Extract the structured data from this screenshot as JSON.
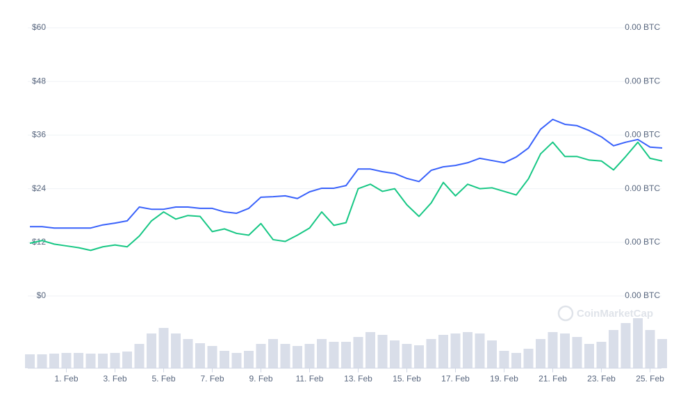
{
  "chart_data": [
    {
      "type": "line",
      "categories": [
        null,
        null,
        null,
        "1. Feb",
        null,
        null,
        null,
        "3. Feb",
        null,
        null,
        null,
        "5. Feb",
        null,
        null,
        null,
        "7. Feb",
        null,
        null,
        null,
        "9. Feb",
        null,
        null,
        null,
        "11. Feb",
        null,
        null,
        null,
        "13. Feb",
        null,
        null,
        null,
        "15. Feb",
        null,
        null,
        null,
        "17. Feb",
        null,
        null,
        null,
        "19. Feb",
        null,
        null,
        null,
        "21. Feb",
        null,
        null,
        null,
        "23. Feb",
        null,
        null,
        null,
        "25. Feb",
        null
      ],
      "series": [
        {
          "color": "#3861fb",
          "values": [
            15.5,
            15.5,
            15.2,
            15.2,
            15.2,
            15.2,
            15.9,
            16.3,
            16.8,
            19.9,
            19.4,
            19.4,
            19.9,
            19.9,
            19.6,
            19.6,
            18.8,
            18.5,
            19.6,
            22.1,
            22.2,
            22.4,
            21.8,
            23.3,
            24.1,
            24.1,
            24.7,
            28.4,
            28.4,
            27.8,
            27.4,
            26.3,
            25.6,
            28.1,
            28.9,
            29.2,
            29.8,
            30.8,
            30.3,
            29.8,
            31.1,
            33.1,
            37.3,
            39.5,
            38.4,
            38.1,
            37.0,
            35.6,
            33.6,
            34.4,
            35.0,
            33.3,
            33.1
          ]
        },
        {
          "color": "#16c784",
          "axis": "y2",
          "values": [
            0.00059,
            0.00062,
            0.00058,
            0.00056,
            0.00054,
            0.00051,
            0.00055,
            0.00057,
            0.00055,
            0.00067,
            0.00084,
            0.00094,
            0.00086,
            0.0009,
            0.00089,
            0.00072,
            0.00075,
            0.0007,
            0.00068,
            0.00081,
            0.00063,
            0.00061,
            0.00068,
            0.00076,
            0.00094,
            0.00079,
            0.00082,
            0.0012,
            0.00125,
            0.00117,
            0.0012,
            0.00102,
            0.00089,
            0.00104,
            0.00127,
            0.00112,
            0.00125,
            0.0012,
            0.00121,
            0.00117,
            0.00113,
            0.00131,
            0.00159,
            0.00172,
            0.00156,
            0.00156,
            0.00152,
            0.00151,
            0.00141,
            0.00156,
            0.00172,
            0.00154,
            0.00151
          ]
        }
      ],
      "ylim": [
        0,
        60
      ],
      "yticks": [
        {
          "value": 0,
          "label": "$0"
        },
        {
          "value": 12,
          "label": "$12"
        },
        {
          "value": 24,
          "label": "$24"
        },
        {
          "value": 36,
          "label": "$36"
        },
        {
          "value": 48,
          "label": "$48"
        },
        {
          "value": 60,
          "label": "$60"
        }
      ],
      "y2lim": [
        0,
        0.003
      ],
      "y2ticks": [
        {
          "value": 0,
          "label": "0.00 BTC"
        },
        {
          "value": 0.0006,
          "label": "0.00 BTC"
        },
        {
          "value": 0.0012,
          "label": "0.00 BTC"
        },
        {
          "value": 0.0018,
          "label": "0.00 BTC"
        },
        {
          "value": 0.0024,
          "label": "0.00 BTC"
        },
        {
          "value": 0.003,
          "label": "0.00 BTC"
        }
      ],
      "grid": true,
      "watermark": "CoinMarketCap"
    },
    {
      "type": "bar",
      "color": "#cfd6e4",
      "values": [
        20,
        20,
        21,
        22,
        22,
        21,
        21,
        22,
        24,
        35,
        50,
        58,
        50,
        42,
        36,
        32,
        25,
        22,
        25,
        35,
        42,
        35,
        32,
        35,
        42,
        38,
        38,
        45,
        52,
        48,
        40,
        35,
        33,
        42,
        48,
        50,
        52,
        50,
        40,
        25,
        22,
        28,
        42,
        52,
        50,
        45,
        35,
        38,
        55,
        65,
        72,
        55,
        42
      ],
      "ylim": [
        0,
        80
      ]
    }
  ]
}
